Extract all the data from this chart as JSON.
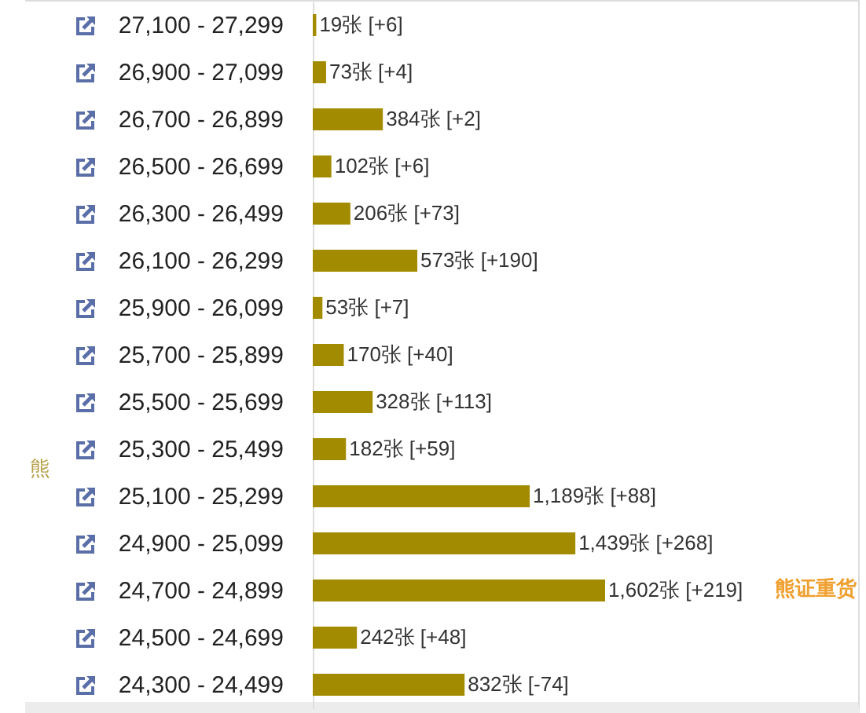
{
  "chart_data": {
    "type": "bar",
    "orientation": "horizontal",
    "ylabel": "熊",
    "categories": [
      "27,100 - 27,299",
      "26,900 - 27,099",
      "26,700 - 26,899",
      "26,500 - 26,699",
      "26,300 - 26,499",
      "26,100 - 26,299",
      "25,900 - 26,099",
      "25,700 - 25,899",
      "25,500 - 25,699",
      "25,300 - 25,499",
      "25,100 - 25,299",
      "24,900 - 25,099",
      "24,700 - 24,899",
      "24,500 - 24,699",
      "24,300 - 24,499"
    ],
    "values": [
      19,
      73,
      384,
      102,
      206,
      573,
      53,
      170,
      328,
      182,
      1189,
      1439,
      1602,
      242,
      832
    ],
    "value_labels": [
      "19张 [+6]",
      "73张 [+4]",
      "384张 [+2]",
      "102张 [+6]",
      "206张 [+73]",
      "573张 [+190]",
      "53张 [+7]",
      "170张 [+40]",
      "328张 [+113]",
      "182张 [+59]",
      "1,189张 [+88]",
      "1,439张 [+268]",
      "1,602张 [+219]",
      "242张 [+48]",
      "832张 [-74]"
    ],
    "color": "#a38b00",
    "tick_labels": "y",
    "annotations": [
      "熊证重货"
    ]
  }
}
